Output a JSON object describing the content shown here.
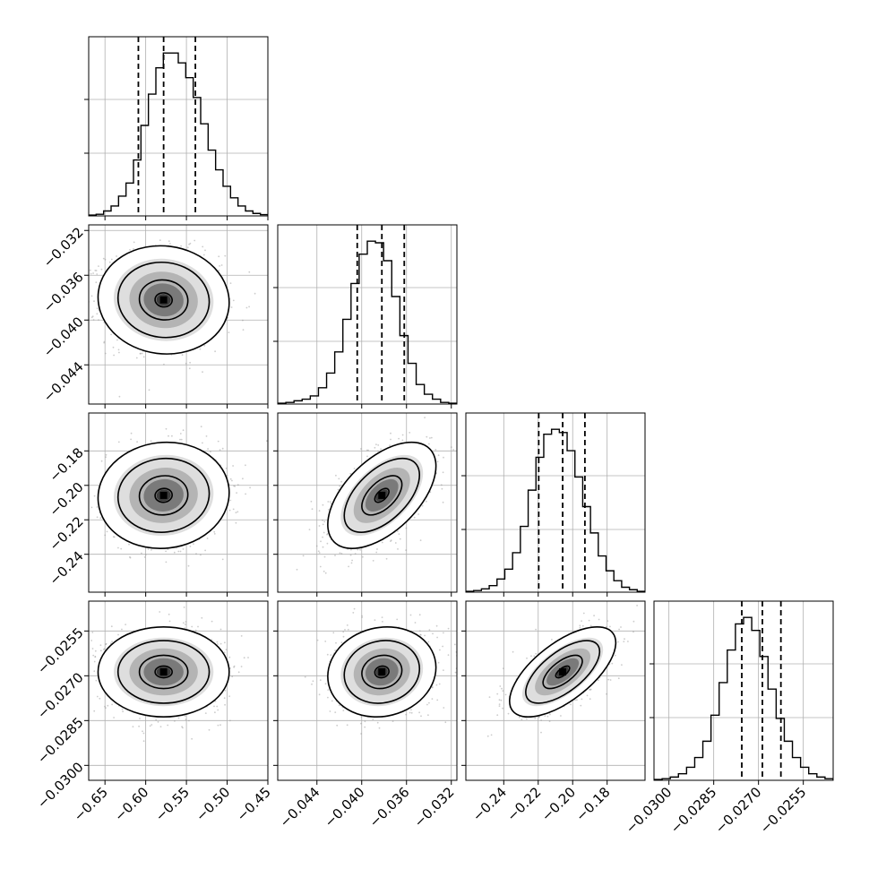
{
  "chart_data": {
    "type": "corner",
    "grid": true,
    "parameters": [
      {
        "range": [
          -0.67,
          -0.45
        ],
        "ticks": [
          "-0.65",
          "-0.60",
          "-0.55",
          "-0.50",
          "-0.45"
        ],
        "tick_values": [
          -0.65,
          -0.6,
          -0.55,
          -0.5,
          -0.45
        ],
        "quantiles": [
          -0.609,
          -0.578,
          -0.539
        ],
        "hist": [
          0.5,
          1,
          3,
          6,
          12,
          20,
          34,
          55,
          74,
          90,
          99,
          99,
          93,
          84,
          72,
          56,
          40,
          28,
          18,
          11,
          6,
          3,
          1.5,
          0.8
        ]
      },
      {
        "range": [
          -0.0475,
          -0.0315
        ],
        "ticks": [
          "-0.044",
          "-0.040",
          "-0.036",
          "-0.032"
        ],
        "tick_values": [
          -0.044,
          -0.04,
          -0.036,
          -0.032
        ],
        "quantiles": [
          -0.0404,
          -0.0382,
          -0.0362
        ],
        "hist": [
          0.5,
          1,
          2,
          3,
          5,
          10,
          19,
          32,
          52,
          74,
          92,
          100,
          99,
          88,
          66,
          42,
          25,
          12,
          6,
          3,
          1,
          0.5
        ]
      },
      {
        "range": [
          -0.262,
          -0.158
        ],
        "ticks": [
          "-0.24",
          "-0.22",
          "-0.20",
          "-0.18"
        ],
        "tick_values": [
          -0.24,
          -0.22,
          -0.2,
          -0.18
        ],
        "quantiles": [
          -0.2197,
          -0.2058,
          -0.1929
        ],
        "hist": [
          0.5,
          1,
          2,
          4,
          8,
          14,
          24,
          40,
          62,
          82,
          96,
          99,
          97,
          86,
          70,
          52,
          36,
          22,
          13,
          7,
          3,
          1.5,
          0.5
        ]
      },
      {
        "range": [
          -0.0305,
          -0.0245
        ],
        "ticks": [
          "-0.0300",
          "-0.0285",
          "-0.0270",
          "-0.0255"
        ],
        "tick_values": [
          -0.03,
          -0.0285,
          -0.027,
          -0.0255
        ],
        "quantiles": [
          -0.02756,
          -0.02687,
          -0.02625
        ],
        "hist": [
          0.5,
          1,
          2,
          4,
          8,
          14,
          24,
          40,
          60,
          80,
          96,
          100,
          92,
          76,
          56,
          38,
          24,
          14,
          8,
          4,
          2,
          1
        ]
      }
    ],
    "correlations": {
      "1,0": -0.05,
      "2,0": 0.05,
      "2,1": 0.55,
      "3,0": 0.0,
      "3,1": 0.1,
      "3,2": 0.65
    },
    "contour_levels": [
      0.39,
      0.86,
      1.39
    ]
  }
}
